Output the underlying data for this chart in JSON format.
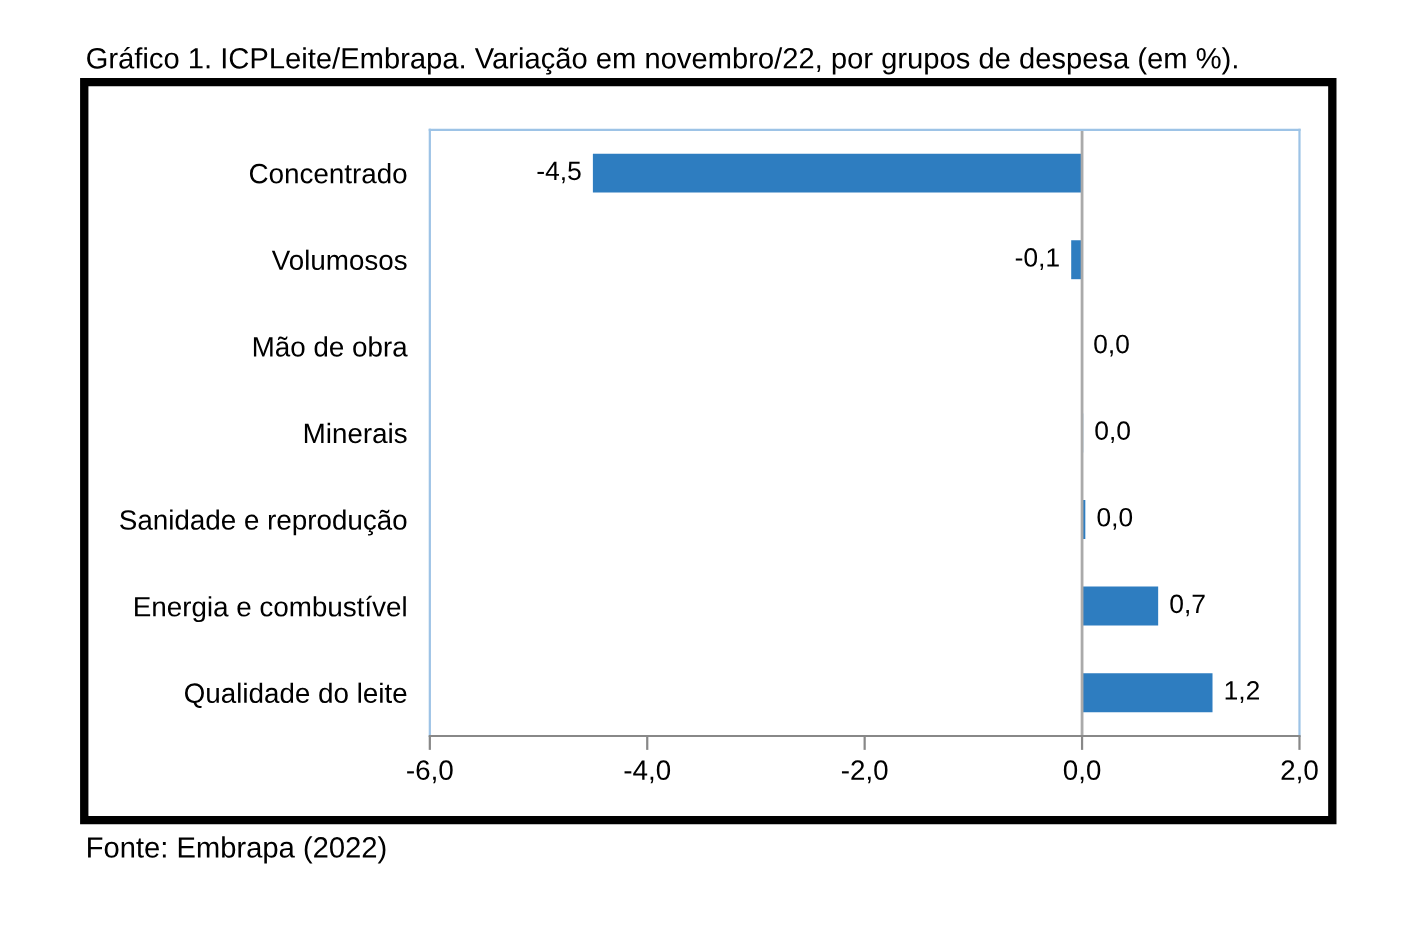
{
  "chart_data": {
    "type": "bar",
    "orientation": "horizontal",
    "title": "Gráfico 1. ICPLeite/Embrapa. Variação em novembro/22, por grupos de despesa (em %).",
    "categories": [
      "Concentrado",
      "Volumosos",
      "Mão de obra",
      "Minerais",
      "Sanidade e reprodução",
      "Energia e combustível",
      "Qualidade do leite"
    ],
    "values": [
      -4.5,
      -0.1,
      0.0,
      0.01,
      0.03,
      0.7,
      1.2
    ],
    "value_labels": [
      "-4,5",
      "-0,1",
      "0,0",
      "0,0",
      "0,0",
      "0,7",
      "1,2"
    ],
    "color": "#2e7dc0",
    "xlim": [
      -6,
      2
    ],
    "xticks": [
      {
        "value": -6,
        "label": "-6,0"
      },
      {
        "value": -4,
        "label": "-4,0"
      },
      {
        "value": -2,
        "label": "-2,0"
      },
      {
        "value": 0,
        "label": "0,0"
      },
      {
        "value": 2,
        "label": "2,0"
      }
    ],
    "annotations": [
      "Fonte: Embrapa (2022)"
    ]
  }
}
